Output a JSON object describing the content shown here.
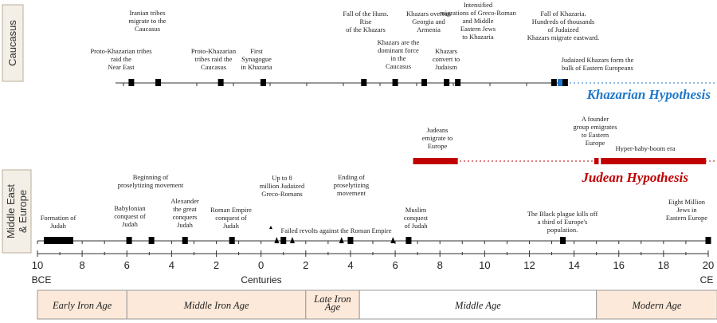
{
  "regions": {
    "caucasus": "Caucasus",
    "middle_east_line1": "Middle East",
    "middle_east_line2": "& Europe"
  },
  "hypotheses": {
    "khazarian": {
      "label": "Khazarian Hypothesis",
      "color": "#1f78c8"
    },
    "judean": {
      "label": "Judean Hypothesis",
      "color": "#c00000"
    }
  },
  "axis": {
    "ticks": [
      "10",
      "8",
      "6",
      "4",
      "2",
      "0",
      "2",
      "4",
      "6",
      "8",
      "10",
      "12",
      "14",
      "16",
      "18",
      "20"
    ],
    "left_era": "BCE",
    "right_era": "CE",
    "title": "Centuries"
  },
  "ages": [
    {
      "label": "Early Iron Age",
      "from": -10,
      "to": -6,
      "color": "#fde9d9"
    },
    {
      "label": "Middle Iron Age",
      "from": -6,
      "to": 2,
      "color": "#fde9d9"
    },
    {
      "label": "Late Iron Age",
      "from": 2,
      "to": 4.4,
      "color": "#fde9d9"
    },
    {
      "label": "Middle Age",
      "from": 4.4,
      "to": 15,
      "color": "#ffffff"
    },
    {
      "label": "Modern Age",
      "from": 15,
      "to": 20.4,
      "color": "#fde9d9"
    }
  ],
  "caucasus_events": [
    {
      "label": "Proto-Khazarian tribes raid the Near East",
      "t": -5.8
    },
    {
      "label": "Iranian tribes migrate to the Caucasus",
      "t": -4.6
    },
    {
      "label": "Proto-Khazarian tribes raid the Caucasus",
      "t": -1.8
    },
    {
      "label": "First Synagogue in Khazaria",
      "t": 0.1
    },
    {
      "label": "Fall of the Huns. Rise of the Khazars",
      "t": 4.6
    },
    {
      "label": "Khazars are the dominant force in the Caucasus",
      "t": 6
    },
    {
      "label": "Khazars overran Georgia and Armenia",
      "t": 7.3
    },
    {
      "label": "Khazars convert to Judaism",
      "t": 8.3
    },
    {
      "label": "Intensified migrations of Greco-Roman and Middle Eastern Jews to Khazaria",
      "t": 8.8
    },
    {
      "label": "Fall of Khazaria. Hundreds of thousands of Judaized Khazars migrate eastward.",
      "t": 13.1
    },
    {
      "label": "Judaized Khazars form the bulk of Eastern Europeans",
      "t": 13.6
    }
  ],
  "judean_periods": [
    {
      "label": "Judeans emigrate to Europe",
      "from": 6.8,
      "to": 8.8
    },
    {
      "label": "A founder group emigrates to Eastern Europe",
      "from": 14.9,
      "to": 15.1
    },
    {
      "label": "Hyper-baby-boom era",
      "from": 15.2,
      "to": 19.9
    }
  ],
  "middle_east_events": [
    {
      "label": "Formation of Judah",
      "t": -9.5,
      "to": -8.4
    },
    {
      "label": "Babylonian conquest of Judah",
      "t": -5.9
    },
    {
      "label": "Beginning of proselytizing movement",
      "t": -4.9
    },
    {
      "label": "Alexander the great conquers Judah",
      "t": -3.4
    },
    {
      "label": "Roman Empire conquest of Judah",
      "t": -1.3
    },
    {
      "label": "Up to 8 million Judaized Greco-Romans",
      "t": 1
    },
    {
      "label": "Failed revolts against the Roman Empire",
      "t": 0.9
    },
    {
      "label": "Ending of proselytizing movement",
      "t": 4
    },
    {
      "label": "Muslim conquest of Judah",
      "t": 6.6
    },
    {
      "label": "The Black plague kills off a third of Europe's population.",
      "t": 13.5
    },
    {
      "label": "Eight Million Jews in Eastern Europe",
      "t": 20
    }
  ]
}
